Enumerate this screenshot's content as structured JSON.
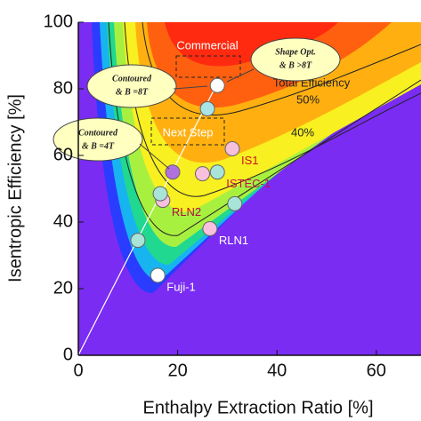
{
  "chart_data": {
    "type": "scatter",
    "xlabel": "Enthalpy Extraction Ratio [%]",
    "ylabel": "Isentropic Efficiency [%]",
    "xlim": [
      0,
      69
    ],
    "ylim": [
      0,
      100
    ],
    "xticks": [
      0,
      20,
      40,
      60
    ],
    "yticks": [
      0,
      20,
      40,
      60,
      80,
      100
    ],
    "contour_labels": [
      "Total Efficiency",
      "50%",
      "40%"
    ],
    "regions": [
      "Commercial",
      "Next Step"
    ],
    "callouts": [
      {
        "line1": "Contoured",
        "line2": "& B =8T"
      },
      {
        "line1": "Contoured",
        "line2": "& B =4T"
      },
      {
        "line1": "Shape Opt.",
        "line2": "& B >8T"
      }
    ],
    "points": [
      {
        "label": "Fuji-1",
        "x": 16,
        "y": 24,
        "color": "#ffffff",
        "label_color": "#ffffff"
      },
      {
        "label": "RLN1",
        "x": 26.5,
        "y": 38,
        "color": "#f7c0dc",
        "label_color": "#ffffff"
      },
      {
        "label": "RLN2",
        "x": 17,
        "y": 46.5,
        "color": "#f7c0dc",
        "label_color": "#b0103a"
      },
      {
        "label": "ISTEC-1",
        "x": 28,
        "y": 55,
        "color": "#a8e4d8",
        "label_color": "#c01050"
      },
      {
        "label": "IS1",
        "x": 31,
        "y": 62,
        "color": "#f7c0dc",
        "label_color": "#d01020"
      },
      {
        "x": 31.5,
        "y": 45.5,
        "color": "#a8e4d8"
      },
      {
        "x": 12,
        "y": 34.5,
        "color": "#a8e4d8"
      },
      {
        "x": 16.5,
        "y": 48.5,
        "color": "#a8e4d8"
      },
      {
        "x": 25,
        "y": 54.5,
        "color": "#f7c0dc"
      },
      {
        "x": 19,
        "y": 55,
        "color": "#b070e0"
      },
      {
        "x": 26,
        "y": 74,
        "color": "#a8e4e8"
      },
      {
        "x": 28,
        "y": 81,
        "color": "#ffffff"
      }
    ]
  }
}
